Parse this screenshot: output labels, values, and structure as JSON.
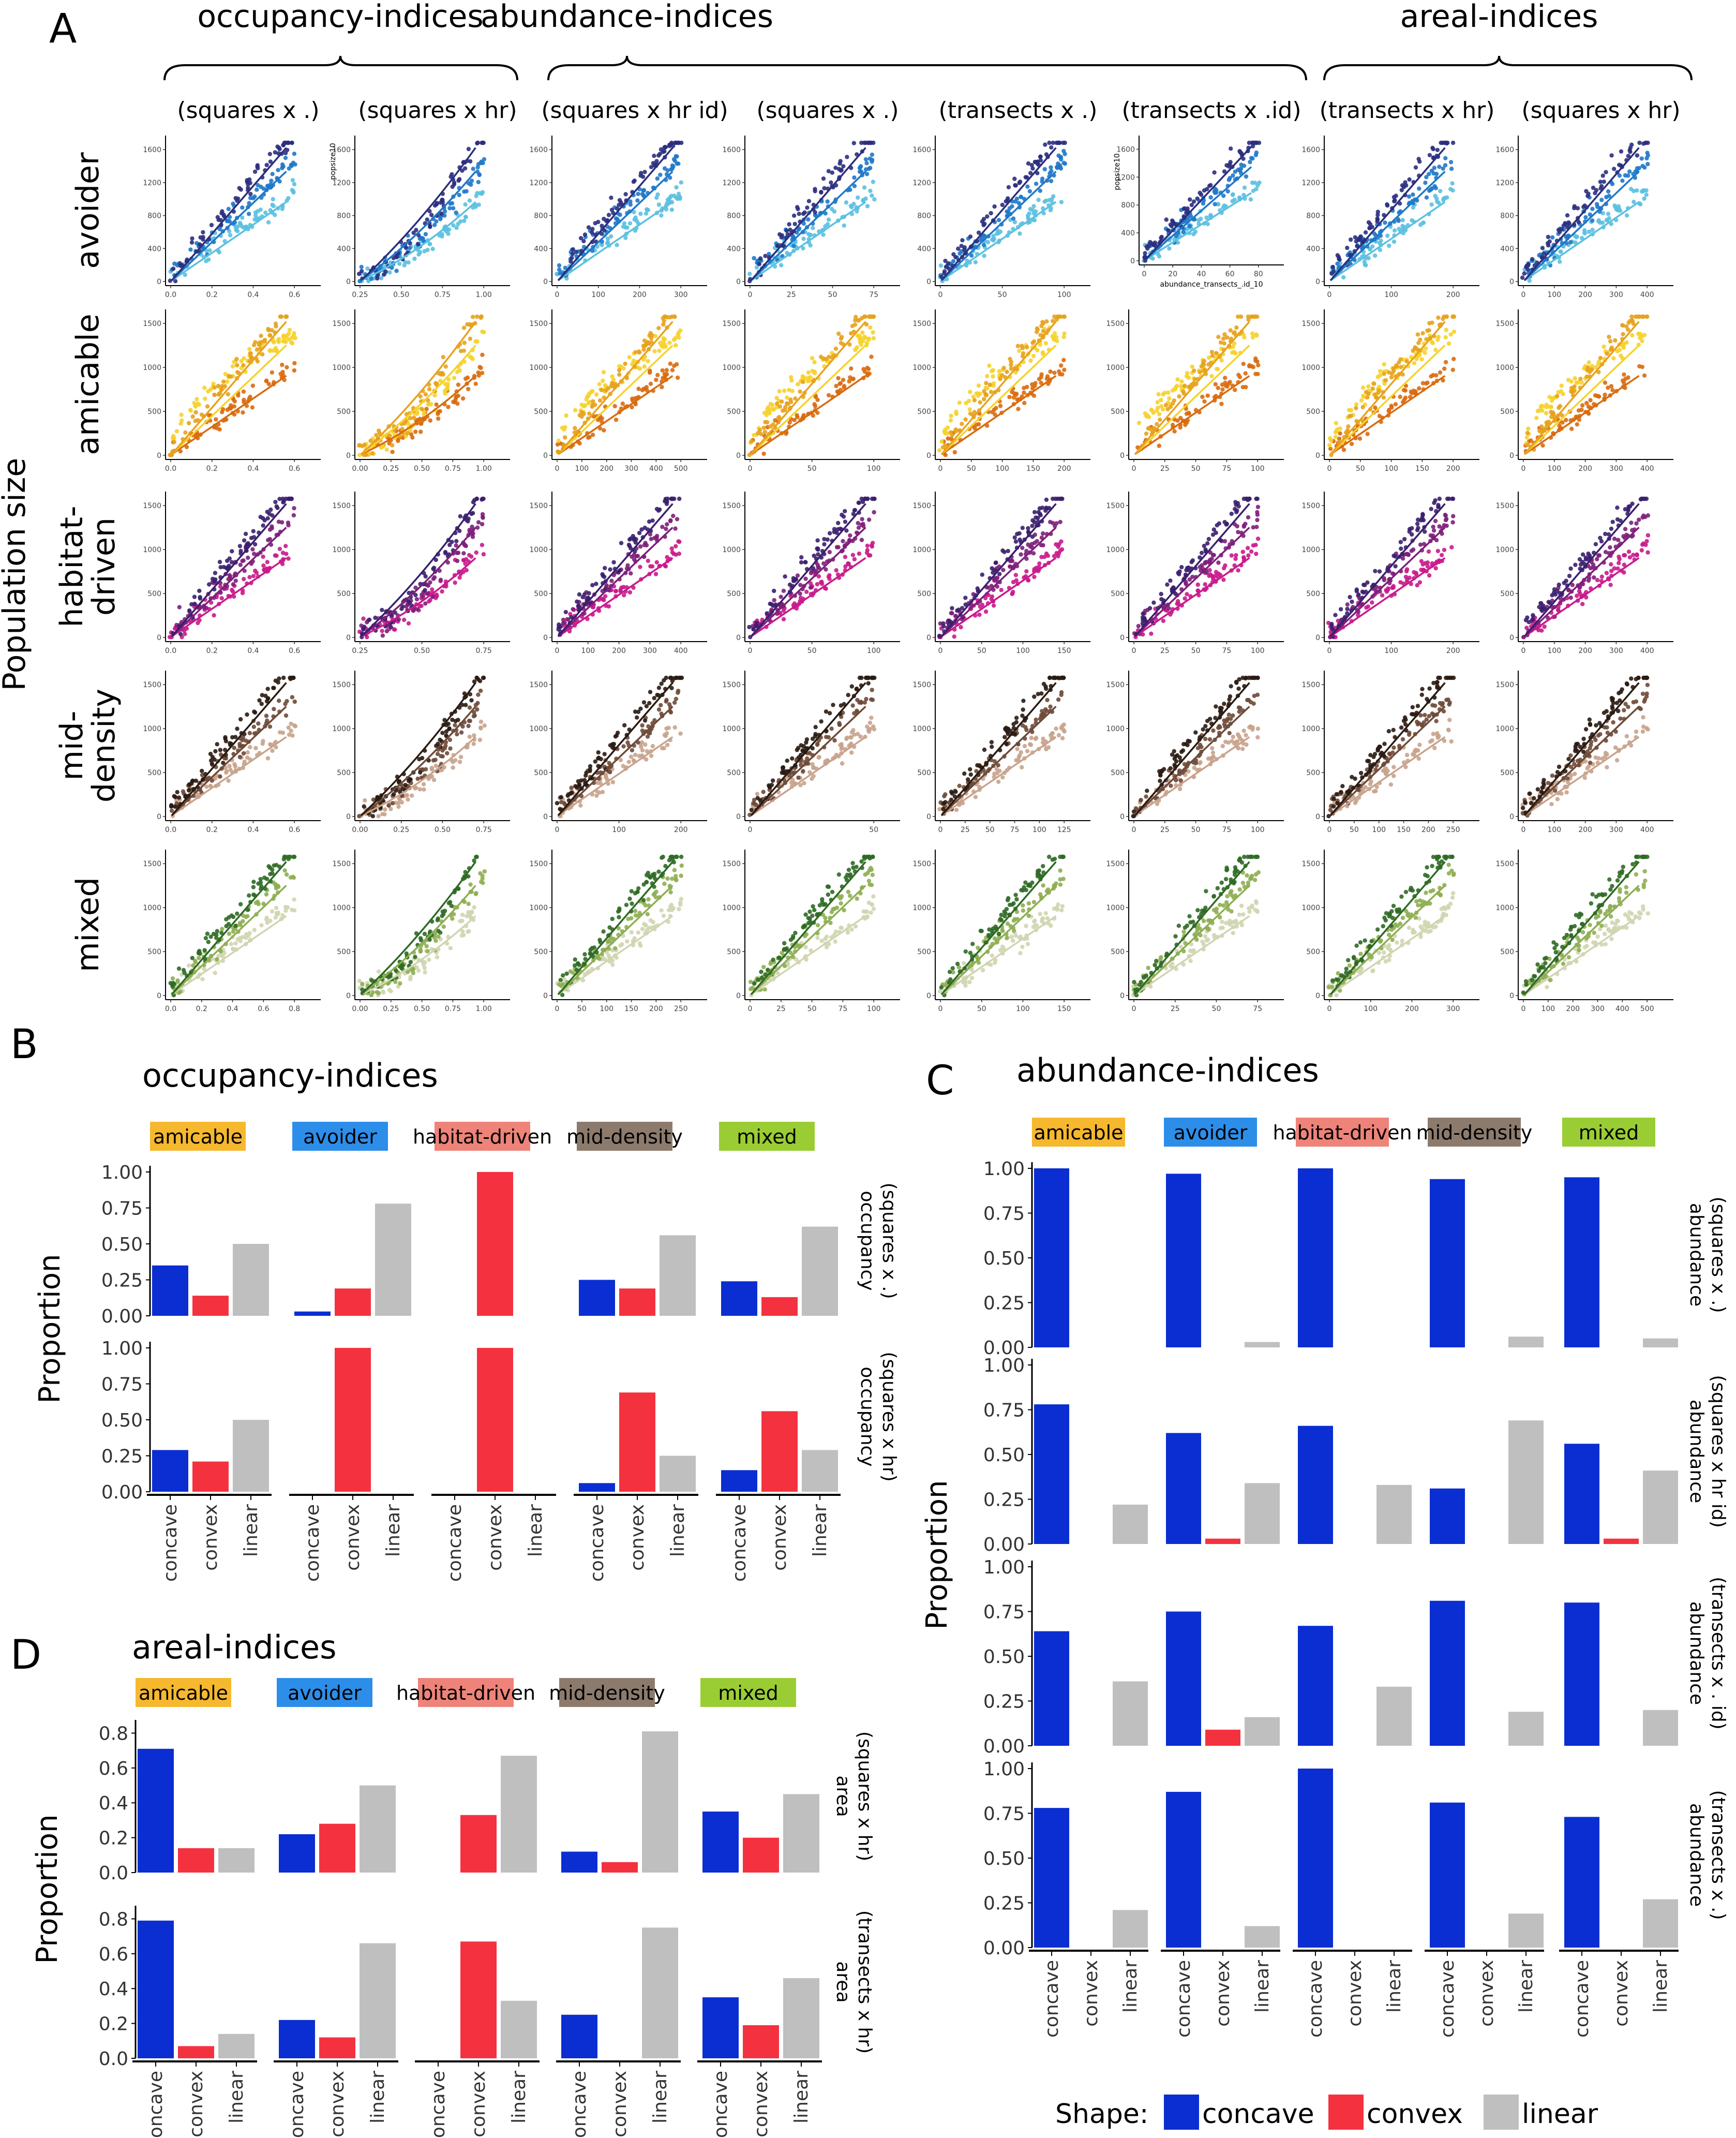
{
  "panel_a": {
    "letter": "A",
    "group_labels": [
      "occupancy-indices",
      "abundance-indices",
      "areal-indices"
    ],
    "col_titles": [
      "(squares x .)",
      "(squares x hr)",
      "(squares x hr id)",
      "(squares x .)",
      "(transects x .)",
      "(transects x .id)",
      "(transects x hr)",
      "(squares x hr)"
    ],
    "row_labels": [
      [
        "avoider"
      ],
      [
        "amicable"
      ],
      [
        "habitat-",
        "driven"
      ],
      [
        "mid-",
        "density"
      ],
      [
        "mixed"
      ]
    ],
    "y_axis_label": "Population size",
    "inset_ylabel": "popsize10",
    "inset_xlabel": "abundance_transects_.id_10",
    "x_ticks": [
      [
        [
          "0.0",
          "0.2",
          "0.4",
          "0.6"
        ],
        [
          "0.25",
          "0.50",
          "0.75",
          "1.00"
        ],
        [
          "0",
          "100",
          "200",
          "300"
        ],
        [
          "0",
          "25",
          "50",
          "75"
        ],
        [
          "0",
          "50",
          "100"
        ],
        [
          "0",
          "20",
          "40",
          "60",
          "80"
        ],
        [
          "0",
          "100",
          "200"
        ],
        [
          "0",
          "100",
          "200",
          "300",
          "400"
        ]
      ],
      [
        [
          "0.0",
          "0.2",
          "0.4",
          "0.6"
        ],
        [
          "0.00",
          "0.25",
          "0.50",
          "0.75",
          "1.00"
        ],
        [
          "0",
          "100",
          "200",
          "300",
          "400",
          "500"
        ],
        [
          "0",
          "50",
          "100"
        ],
        [
          "0",
          "50",
          "100",
          "150",
          "200"
        ],
        [
          "0",
          "25",
          "50",
          "75",
          "100"
        ],
        [
          "0",
          "50",
          "100",
          "150",
          "200"
        ],
        [
          "0",
          "100",
          "200",
          "300",
          "400"
        ]
      ],
      [
        [
          "0.0",
          "0.2",
          "0.4",
          "0.6"
        ],
        [
          "0.25",
          "0.50",
          "0.75"
        ],
        [
          "0",
          "100",
          "200",
          "300",
          "400"
        ],
        [
          "0",
          "50",
          "100"
        ],
        [
          "0",
          "50",
          "100",
          "150"
        ],
        [
          "0",
          "25",
          "50",
          "75",
          "100"
        ],
        [
          "0",
          "100",
          "200"
        ],
        [
          "0",
          "100",
          "200",
          "300",
          "400"
        ]
      ],
      [
        [
          "0.0",
          "0.2",
          "0.4",
          "0.6"
        ],
        [
          "0.00",
          "0.25",
          "0.50",
          "0.75"
        ],
        [
          "0",
          "100",
          "200"
        ],
        [
          "0",
          "50"
        ],
        [
          "0",
          "25",
          "50",
          "75",
          "100",
          "125"
        ],
        [
          "0",
          "25",
          "50",
          "75",
          "100"
        ],
        [
          "0",
          "50",
          "100",
          "150",
          "200",
          "250"
        ],
        [
          "0",
          "100",
          "200",
          "300",
          "400"
        ]
      ],
      [
        [
          "0.0",
          "0.2",
          "0.4",
          "0.6",
          "0.8"
        ],
        [
          "0.00",
          "0.25",
          "0.50",
          "0.75",
          "1.00"
        ],
        [
          "0",
          "50",
          "100",
          "150",
          "200",
          "250"
        ],
        [
          "0",
          "25",
          "50",
          "75",
          "100"
        ],
        [
          "0",
          "50",
          "100",
          "150"
        ],
        [
          "0",
          "25",
          "50",
          "75"
        ],
        [
          "0",
          "100",
          "200",
          "300"
        ],
        [
          "0",
          "100",
          "200",
          "300",
          "400",
          "500"
        ]
      ]
    ],
    "y_ticks": [
      [
        "0",
        "400",
        "800",
        "1200",
        "1600"
      ],
      [
        "0",
        "500",
        "1000",
        "1500"
      ],
      [
        "0",
        "500",
        "1000",
        "1500"
      ],
      [
        "0",
        "500",
        "1000",
        "1500"
      ],
      [
        "0",
        "500",
        "1000",
        "1500"
      ]
    ],
    "palettes": [
      [
        "#2b2f7e",
        "#1f78c8",
        "#5bc0e0"
      ],
      [
        "#e7a21d",
        "#f6d22b",
        "#d96b0e"
      ],
      [
        "#3a1f6e",
        "#7d1f7a",
        "#c91a8c"
      ],
      [
        "#2a1b12",
        "#6e4a38",
        "#c8a38c"
      ],
      [
        "#2f6a25",
        "#8eae52",
        "#d0d5b1"
      ]
    ]
  },
  "shape_labels": [
    "concave",
    "convex",
    "linear"
  ],
  "shape_colors": {
    "concave": "#0a2ed1",
    "convex": "#f4323f",
    "linear": "#bfbfbf"
  },
  "legend": {
    "title": "Shape:",
    "items": [
      "concave",
      "convex",
      "linear"
    ]
  },
  "chart_data": [
    {
      "type": "bar",
      "panel": "B",
      "title": "occupancy-indices",
      "ylabel": "Proportion",
      "ylim": [
        0,
        1
      ],
      "yticks": [
        "0.00",
        "0.25",
        "0.50",
        "0.75",
        "1.00"
      ],
      "facets": [
        {
          "name": "amicable",
          "color": "#f5b82e"
        },
        {
          "name": "avoider",
          "color": "#2d8eea"
        },
        {
          "name": "habitat-driven",
          "color": "#ee8379"
        },
        {
          "name": "mid-density",
          "color": "#8c7b6d"
        },
        {
          "name": "mixed",
          "color": "#9acd33"
        }
      ],
      "categories": [
        "concave",
        "convex",
        "linear"
      ],
      "rows": [
        {
          "label": [
            "occupancy",
            "(squares x .)"
          ],
          "values": [
            [
              0.35,
              0.14,
              0.5
            ],
            [
              0.03,
              0.19,
              0.78
            ],
            [
              0.0,
              1.0,
              0.0
            ],
            [
              0.25,
              0.19,
              0.56
            ],
            [
              0.24,
              0.13,
              0.62
            ]
          ]
        },
        {
          "label": [
            "occupancy",
            "(squares x hr)"
          ],
          "values": [
            [
              0.29,
              0.21,
              0.5
            ],
            [
              0.0,
              1.0,
              0.0
            ],
            [
              0.0,
              1.0,
              0.0
            ],
            [
              0.06,
              0.69,
              0.25
            ],
            [
              0.15,
              0.56,
              0.29
            ]
          ]
        }
      ]
    },
    {
      "type": "bar",
      "panel": "C",
      "title": "abundance-indices",
      "ylabel": "Proportion",
      "ylim": [
        0,
        1
      ],
      "yticks": [
        "0.00",
        "0.25",
        "0.50",
        "0.75",
        "1.00"
      ],
      "facets": [
        {
          "name": "amicable",
          "color": "#f5b82e"
        },
        {
          "name": "avoider",
          "color": "#2d8eea"
        },
        {
          "name": "habitat-driven",
          "color": "#ee8379"
        },
        {
          "name": "mid-density",
          "color": "#8c7b6d"
        },
        {
          "name": "mixed",
          "color": "#9acd33"
        }
      ],
      "categories": [
        "concave",
        "convex",
        "linear"
      ],
      "rows": [
        {
          "label": [
            "abundance",
            "(squares x .)"
          ],
          "values": [
            [
              1.0,
              0.0,
              0.0
            ],
            [
              0.97,
              0.0,
              0.03
            ],
            [
              1.0,
              0.0,
              0.0
            ],
            [
              0.94,
              0.0,
              0.06
            ],
            [
              0.95,
              0.0,
              0.05
            ]
          ]
        },
        {
          "label": [
            "abundance",
            "(squares x hr id)"
          ],
          "values": [
            [
              0.78,
              0.0,
              0.22
            ],
            [
              0.62,
              0.03,
              0.34
            ],
            [
              0.66,
              0.0,
              0.33
            ],
            [
              0.31,
              0.0,
              0.69
            ],
            [
              0.56,
              0.03,
              0.41
            ]
          ]
        },
        {
          "label": [
            "abundance",
            "(transects x . id)"
          ],
          "values": [
            [
              0.64,
              0.0,
              0.36
            ],
            [
              0.75,
              0.09,
              0.16
            ],
            [
              0.67,
              0.0,
              0.33
            ],
            [
              0.81,
              0.0,
              0.19
            ],
            [
              0.8,
              0.0,
              0.2
            ]
          ]
        },
        {
          "label": [
            "abundance",
            "(transects x .)"
          ],
          "values": [
            [
              0.78,
              0.0,
              0.21
            ],
            [
              0.87,
              0.0,
              0.12
            ],
            [
              1.0,
              0.0,
              0.0
            ],
            [
              0.81,
              0.0,
              0.19
            ],
            [
              0.73,
              0.0,
              0.27
            ]
          ]
        }
      ]
    },
    {
      "type": "bar",
      "panel": "D",
      "title": "areal-indices",
      "ylabel": "Proportion",
      "ylim": [
        0,
        0.84
      ],
      "yticks": [
        "0.0",
        "0.2",
        "0.4",
        "0.6",
        "0.8"
      ],
      "facets": [
        {
          "name": "amicable",
          "color": "#f5b82e"
        },
        {
          "name": "avoider",
          "color": "#2d8eea"
        },
        {
          "name": "habitat-driven",
          "color": "#ee8379"
        },
        {
          "name": "mid-density",
          "color": "#8c7b6d"
        },
        {
          "name": "mixed",
          "color": "#9acd33"
        }
      ],
      "categories": [
        "concave",
        "convex",
        "linear"
      ],
      "rows": [
        {
          "label": [
            "area",
            "(squares x hr)"
          ],
          "values": [
            [
              0.71,
              0.14,
              0.14
            ],
            [
              0.22,
              0.28,
              0.5
            ],
            [
              0.0,
              0.33,
              0.67
            ],
            [
              0.12,
              0.06,
              0.81
            ],
            [
              0.35,
              0.2,
              0.45
            ]
          ]
        },
        {
          "label": [
            "area",
            "(transects x hr)"
          ],
          "values": [
            [
              0.79,
              0.07,
              0.14
            ],
            [
              0.22,
              0.12,
              0.66
            ],
            [
              0.0,
              0.67,
              0.33
            ],
            [
              0.25,
              0.0,
              0.75
            ],
            [
              0.35,
              0.19,
              0.46
            ]
          ]
        }
      ]
    }
  ]
}
